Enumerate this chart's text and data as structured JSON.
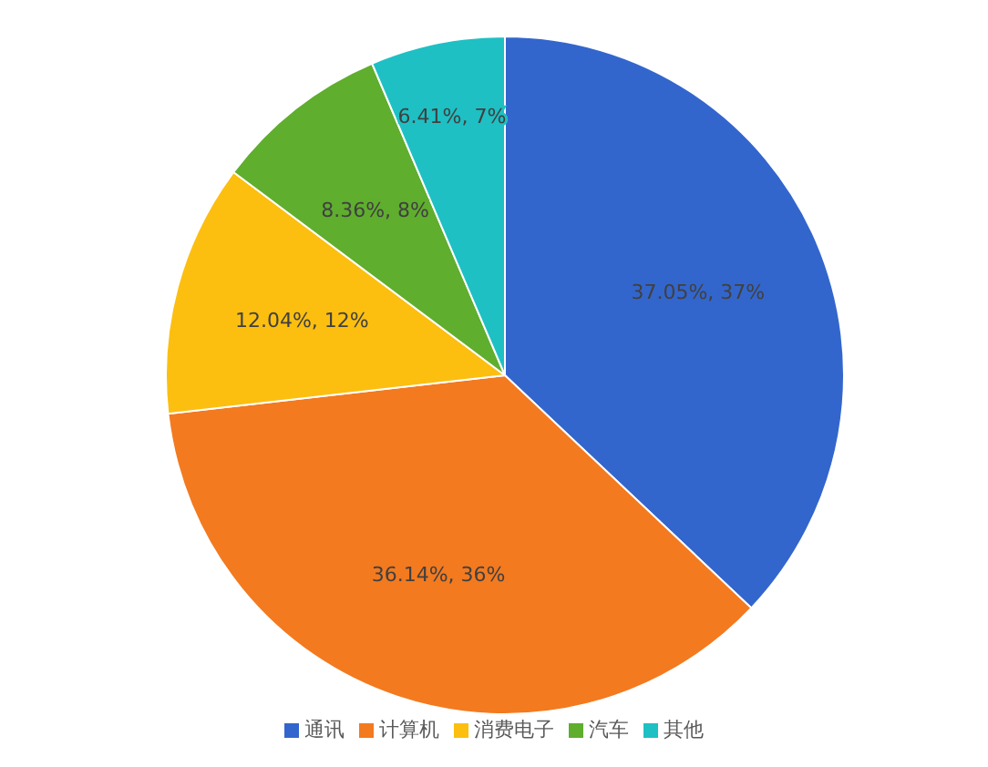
{
  "chart_data": {
    "type": "pie",
    "categories": [
      "通讯",
      "计算机",
      "消费电子",
      "汽车",
      "其他"
    ],
    "values": [
      37.05,
      36.14,
      12.04,
      8.36,
      6.41
    ],
    "colors": [
      "#3366cc",
      "#f37a1f",
      "#fcbf10",
      "#5fae2e",
      "#1ec0c4"
    ],
    "value_labels": [
      "37.05%, 37%",
      "36.14%, 36%",
      "12.04%, 12%",
      "8.36%, 8%",
      "6.41%, 7%"
    ],
    "legend": "bottom"
  }
}
